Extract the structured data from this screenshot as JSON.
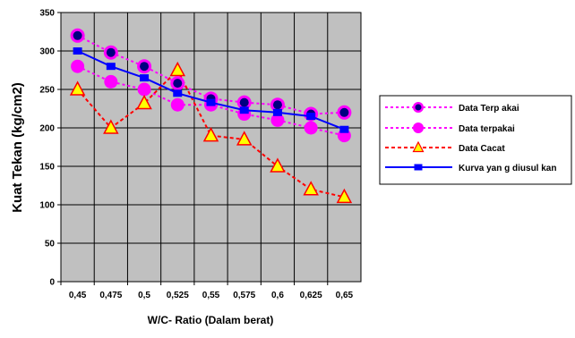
{
  "chart_data": {
    "type": "line",
    "xlabel": "W/C- Ratio (Dalam berat)",
    "ylabel": "Kuat Tekan (kg/cm2)",
    "ylim": [
      0,
      350
    ],
    "yticks": [
      "0",
      "50",
      "100",
      "150",
      "200",
      "250",
      "300",
      "350"
    ],
    "categories": [
      "0,45",
      "0,475",
      "0,5",
      "0,525",
      "0,55",
      "0,575",
      "0,6",
      "0,625",
      "0,65"
    ],
    "grid": true,
    "legend_position": "right",
    "series": [
      {
        "name": "Data Terp akai",
        "values": [
          320,
          298,
          280,
          258,
          238,
          233,
          230,
          218,
          220
        ]
      },
      {
        "name": "Data terpakai",
        "values": [
          280,
          260,
          250,
          230,
          230,
          218,
          210,
          200,
          190
        ]
      },
      {
        "name": "Data Cacat",
        "values": [
          250,
          200,
          232,
          275,
          190,
          185,
          150,
          120,
          110
        ]
      },
      {
        "name": "Kurva yan g diusul kan",
        "values": [
          300,
          280,
          265,
          245,
          233,
          223,
          220,
          215,
          198
        ]
      }
    ],
    "colors": {
      "plot_bg": "#c0c0c0",
      "grid": "#000000",
      "magenta": "#ff00ff",
      "navy": "#000080",
      "red": "#ff0000",
      "yellow": "#ffff00",
      "blue": "#0000ff"
    }
  }
}
